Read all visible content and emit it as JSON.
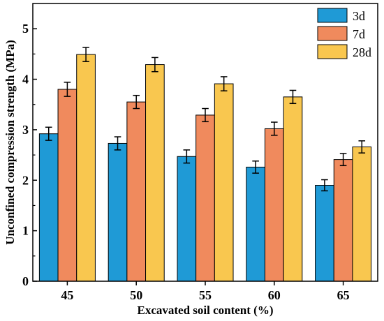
{
  "chart_data": {
    "type": "bar",
    "xlabel": "Excavated soil content (%)",
    "ylabel": "Unconfined compression strength (MPa)",
    "categories": [
      "45",
      "50",
      "55",
      "60",
      "65"
    ],
    "ylim": [
      0,
      5.5
    ],
    "yticks": [
      "0",
      "1",
      "2",
      "3",
      "4",
      "5"
    ],
    "grid": false,
    "legend_position": "top-right",
    "series": [
      {
        "name": "3d",
        "color": "#1f9ad6",
        "values": [
          2.92,
          2.73,
          2.47,
          2.26,
          1.9
        ],
        "errors": [
          0.13,
          0.13,
          0.13,
          0.12,
          0.11
        ]
      },
      {
        "name": "7d",
        "color": "#f08a5d",
        "values": [
          3.8,
          3.55,
          3.29,
          3.02,
          2.41
        ],
        "errors": [
          0.14,
          0.13,
          0.13,
          0.13,
          0.12
        ]
      },
      {
        "name": "28d",
        "color": "#f9c74f",
        "values": [
          4.49,
          4.29,
          3.91,
          3.65,
          2.66
        ],
        "errors": [
          0.14,
          0.14,
          0.14,
          0.13,
          0.12
        ]
      }
    ]
  }
}
